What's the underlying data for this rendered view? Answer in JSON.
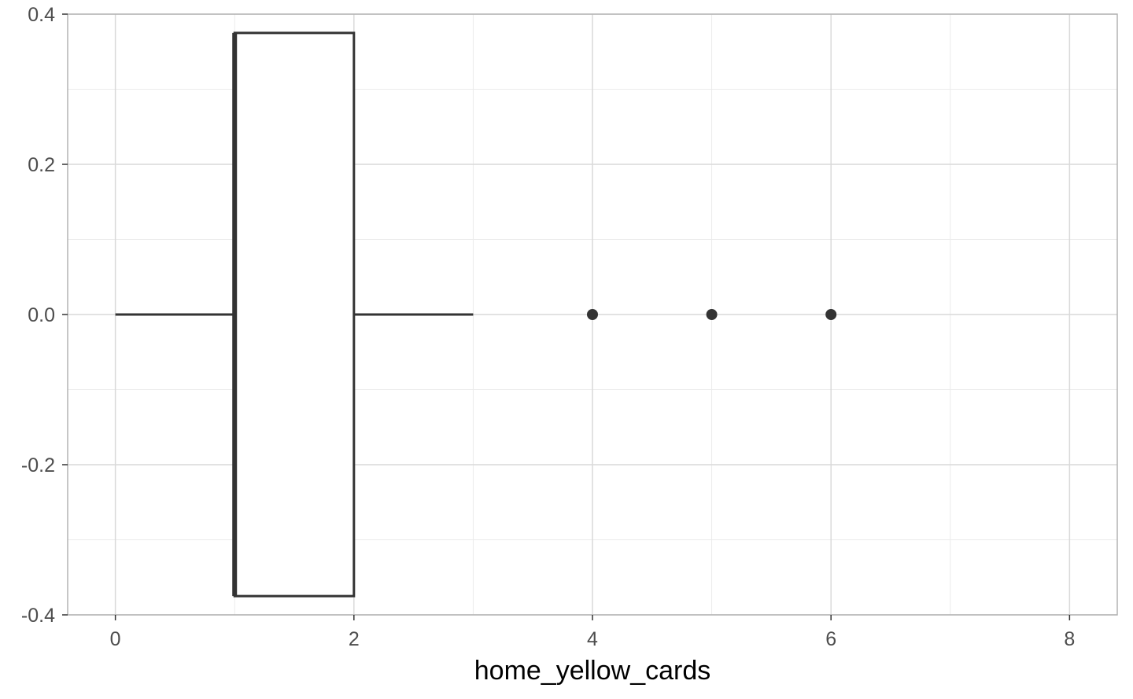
{
  "chart_data": {
    "type": "boxplot",
    "orientation": "horizontal",
    "xlabel": "home_yellow_cards",
    "ylabel": "",
    "xlim": [
      -0.4,
      8.4
    ],
    "ylim": [
      -0.4,
      0.4
    ],
    "x_ticks": [
      0,
      2,
      4,
      6,
      8
    ],
    "x_tick_labels": [
      "0",
      "2",
      "4",
      "6",
      "8"
    ],
    "x_minor_gridlines": [
      1,
      3,
      5,
      7
    ],
    "y_ticks": [
      -0.4,
      -0.2,
      0.0,
      0.2,
      0.4
    ],
    "y_tick_labels": [
      "-0.4",
      "-0.2",
      "0.0",
      "0.2",
      "0.4"
    ],
    "y_minor_gridlines": [
      -0.3,
      -0.1,
      0.1,
      0.3
    ],
    "grid": true,
    "box": {
      "whisker_low": 0,
      "q1": 1,
      "median": 1,
      "q3": 2,
      "whisker_high": 3,
      "box_ymin": -0.375,
      "box_ymax": 0.375,
      "y_center": 0
    },
    "outliers": [
      4,
      5,
      6
    ],
    "colors": {
      "box_line": "#333333",
      "grid_major": "#d9d9d9",
      "grid_minor": "#ebebeb",
      "panel_border": "#b3b3b3",
      "outlier": "#333333"
    }
  }
}
